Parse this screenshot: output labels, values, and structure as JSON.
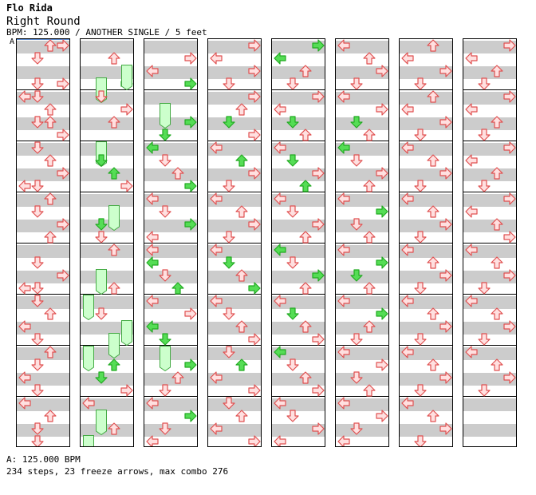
{
  "header": {
    "artist": "Flo Rida",
    "title": "Right Round",
    "info": "BPM: 125.000 / ANOTHER SINGLE / 5 feet",
    "bpm_marker": "A"
  },
  "footer": {
    "bpm_line": "A: 125.000 BPM",
    "stats_line": "234 steps, 23 freeze arrows, max combo 276"
  },
  "colors": {
    "stripe": "#cccccc",
    "arrow_red_fill": "#ffe0e0",
    "arrow_red_stroke": "#e05050",
    "arrow_green_fill": "#55dd55",
    "arrow_green_stroke": "#22aa22",
    "freeze_fill": "#ccffcc",
    "freeze_stroke": "#44aa44"
  },
  "chart": {
    "columns": 8,
    "measures_per_column": 8,
    "lanes": [
      "left",
      "down",
      "up",
      "right"
    ],
    "notes": [
      [
        [
          0,
          "up",
          1
        ],
        [
          1,
          "down",
          1
        ],
        [
          0,
          "right",
          1
        ],
        [
          3,
          "right",
          1
        ],
        [
          3,
          "down",
          1
        ],
        [
          4,
          "left",
          1
        ],
        [
          4,
          "down",
          1
        ],
        [
          5,
          "up",
          1
        ],
        [
          6,
          "down",
          1
        ],
        [
          6,
          "up",
          1
        ],
        [
          7,
          "right",
          1
        ],
        [
          8,
          "down",
          1
        ],
        [
          9,
          "up",
          1
        ],
        [
          10,
          "right",
          1
        ],
        [
          11,
          "left",
          1
        ],
        [
          11,
          "down",
          1
        ],
        [
          12,
          "up",
          1
        ],
        [
          13,
          "down",
          1
        ],
        [
          14,
          "right",
          1
        ],
        [
          15,
          "up",
          1
        ],
        [
          17,
          "down",
          1
        ],
        [
          18,
          "right",
          1
        ],
        [
          19,
          "left",
          1
        ],
        [
          19,
          "down",
          1
        ],
        [
          20,
          "down",
          1
        ],
        [
          21,
          "up",
          1
        ],
        [
          22,
          "left",
          1
        ],
        [
          23,
          "down",
          1
        ],
        [
          24,
          "up",
          1
        ],
        [
          25,
          "down",
          1
        ],
        [
          26,
          "left",
          1
        ],
        [
          27,
          "down",
          1
        ],
        [
          28,
          "left",
          1
        ],
        [
          29,
          "up",
          1
        ],
        [
          30,
          "down",
          1
        ],
        [
          31,
          "down",
          1
        ]
      ],
      [
        [
          3,
          "right",
          2
        ],
        [
          3,
          "down",
          0
        ],
        [
          6,
          "up",
          1
        ],
        [
          2,
          "right",
          0
        ],
        [
          1,
          "up",
          1
        ],
        [
          4,
          "down",
          1
        ],
        [
          5,
          "right",
          1
        ],
        [
          8,
          "down",
          0
        ],
        [
          9,
          "down",
          2
        ],
        [
          10,
          "up",
          2
        ],
        [
          11,
          "right",
          1
        ],
        [
          13,
          "up",
          0
        ],
        [
          14,
          "down",
          2
        ],
        [
          15,
          "down",
          1
        ],
        [
          16,
          "up",
          1
        ],
        [
          18,
          "down",
          0
        ],
        [
          19,
          "up",
          1
        ],
        [
          20,
          "left",
          0
        ],
        [
          21,
          "down",
          1
        ],
        [
          22,
          "right",
          0
        ],
        [
          23,
          "up",
          0
        ],
        [
          24,
          "left",
          0
        ],
        [
          25,
          "up",
          2
        ],
        [
          26,
          "down",
          2
        ],
        [
          27,
          "right",
          1
        ],
        [
          28,
          "left",
          1
        ],
        [
          29,
          "down",
          0
        ],
        [
          30,
          "up",
          1
        ],
        [
          31,
          "left",
          0
        ]
      ],
      [
        [
          1,
          "right",
          1
        ],
        [
          2,
          "left",
          1
        ],
        [
          3,
          "right",
          2
        ],
        [
          5,
          "down",
          0
        ],
        [
          6,
          "right",
          2
        ],
        [
          7,
          "down",
          2
        ],
        [
          8,
          "left",
          2
        ],
        [
          9,
          "down",
          1
        ],
        [
          10,
          "up",
          1
        ],
        [
          11,
          "right",
          2
        ],
        [
          12,
          "left",
          1
        ],
        [
          13,
          "down",
          1
        ],
        [
          14,
          "right",
          2
        ],
        [
          15,
          "left",
          1
        ],
        [
          16,
          "left",
          1
        ],
        [
          17,
          "left",
          2
        ],
        [
          18,
          "down",
          1
        ],
        [
          19,
          "up",
          2
        ],
        [
          20,
          "left",
          1
        ],
        [
          21,
          "right",
          1
        ],
        [
          22,
          "left",
          2
        ],
        [
          23,
          "down",
          2
        ],
        [
          24,
          "down",
          0
        ],
        [
          25,
          "right",
          2
        ],
        [
          26,
          "up",
          1
        ],
        [
          27,
          "down",
          1
        ],
        [
          28,
          "left",
          1
        ],
        [
          29,
          "right",
          2
        ],
        [
          30,
          "down",
          1
        ],
        [
          31,
          "left",
          1
        ]
      ],
      [
        [
          0,
          "right",
          1
        ],
        [
          1,
          "left",
          1
        ],
        [
          2,
          "right",
          1
        ],
        [
          3,
          "down",
          1
        ],
        [
          4,
          "right",
          1
        ],
        [
          5,
          "up",
          1
        ],
        [
          6,
          "down",
          2
        ],
        [
          7,
          "right",
          1
        ],
        [
          8,
          "left",
          1
        ],
        [
          9,
          "up",
          2
        ],
        [
          10,
          "right",
          1
        ],
        [
          11,
          "down",
          1
        ],
        [
          12,
          "left",
          1
        ],
        [
          13,
          "up",
          1
        ],
        [
          14,
          "right",
          1
        ],
        [
          15,
          "down",
          1
        ],
        [
          16,
          "left",
          1
        ],
        [
          17,
          "down",
          2
        ],
        [
          18,
          "up",
          1
        ],
        [
          19,
          "right",
          2
        ],
        [
          20,
          "left",
          1
        ],
        [
          21,
          "down",
          1
        ],
        [
          22,
          "up",
          1
        ],
        [
          23,
          "right",
          1
        ],
        [
          24,
          "down",
          1
        ],
        [
          25,
          "up",
          2
        ],
        [
          26,
          "left",
          1
        ],
        [
          27,
          "right",
          1
        ],
        [
          28,
          "down",
          1
        ],
        [
          29,
          "up",
          1
        ],
        [
          30,
          "left",
          1
        ],
        [
          31,
          "right",
          1
        ]
      ],
      [
        [
          0,
          "right",
          2
        ],
        [
          1,
          "left",
          2
        ],
        [
          2,
          "up",
          1
        ],
        [
          3,
          "down",
          1
        ],
        [
          4,
          "right",
          1
        ],
        [
          5,
          "left",
          1
        ],
        [
          6,
          "down",
          2
        ],
        [
          7,
          "up",
          1
        ],
        [
          8,
          "left",
          1
        ],
        [
          9,
          "down",
          2
        ],
        [
          10,
          "right",
          1
        ],
        [
          11,
          "up",
          2
        ],
        [
          12,
          "left",
          1
        ],
        [
          13,
          "down",
          1
        ],
        [
          14,
          "right",
          1
        ],
        [
          15,
          "up",
          1
        ],
        [
          16,
          "left",
          2
        ],
        [
          17,
          "down",
          1
        ],
        [
          18,
          "right",
          2
        ],
        [
          19,
          "up",
          1
        ],
        [
          20,
          "left",
          1
        ],
        [
          21,
          "down",
          2
        ],
        [
          22,
          "up",
          1
        ],
        [
          23,
          "right",
          1
        ],
        [
          24,
          "left",
          2
        ],
        [
          25,
          "down",
          1
        ],
        [
          26,
          "up",
          1
        ],
        [
          27,
          "right",
          1
        ],
        [
          28,
          "left",
          1
        ],
        [
          29,
          "down",
          1
        ],
        [
          30,
          "right",
          1
        ],
        [
          31,
          "left",
          1
        ]
      ],
      [
        [
          0,
          "left",
          1
        ],
        [
          1,
          "up",
          1
        ],
        [
          2,
          "right",
          1
        ],
        [
          3,
          "down",
          1
        ],
        [
          4,
          "left",
          1
        ],
        [
          5,
          "right",
          1
        ],
        [
          6,
          "down",
          2
        ],
        [
          7,
          "up",
          1
        ],
        [
          8,
          "left",
          2
        ],
        [
          9,
          "down",
          1
        ],
        [
          10,
          "right",
          1
        ],
        [
          11,
          "up",
          1
        ],
        [
          12,
          "left",
          1
        ],
        [
          13,
          "right",
          2
        ],
        [
          14,
          "down",
          1
        ],
        [
          15,
          "up",
          1
        ],
        [
          16,
          "left",
          1
        ],
        [
          17,
          "right",
          2
        ],
        [
          18,
          "down",
          2
        ],
        [
          19,
          "up",
          1
        ],
        [
          20,
          "left",
          1
        ],
        [
          21,
          "right",
          2
        ],
        [
          22,
          "up",
          1
        ],
        [
          23,
          "down",
          1
        ],
        [
          24,
          "left",
          1
        ],
        [
          25,
          "right",
          1
        ],
        [
          26,
          "down",
          1
        ],
        [
          27,
          "up",
          1
        ],
        [
          28,
          "left",
          1
        ],
        [
          29,
          "right",
          1
        ],
        [
          30,
          "down",
          1
        ],
        [
          31,
          "left",
          1
        ]
      ],
      [
        [
          0,
          "up",
          1
        ],
        [
          1,
          "left",
          1
        ],
        [
          2,
          "right",
          1
        ],
        [
          3,
          "down",
          1
        ],
        [
          4,
          "up",
          1
        ],
        [
          5,
          "left",
          1
        ],
        [
          6,
          "right",
          1
        ],
        [
          7,
          "down",
          1
        ],
        [
          8,
          "left",
          1
        ],
        [
          9,
          "up",
          1
        ],
        [
          10,
          "right",
          1
        ],
        [
          11,
          "down",
          1
        ],
        [
          12,
          "left",
          1
        ],
        [
          13,
          "up",
          1
        ],
        [
          14,
          "right",
          1
        ],
        [
          15,
          "down",
          1
        ],
        [
          16,
          "left",
          1
        ],
        [
          17,
          "up",
          1
        ],
        [
          18,
          "right",
          1
        ],
        [
          19,
          "down",
          1
        ],
        [
          20,
          "left",
          1
        ],
        [
          21,
          "up",
          1
        ],
        [
          22,
          "right",
          1
        ],
        [
          23,
          "down",
          1
        ],
        [
          24,
          "left",
          1
        ],
        [
          25,
          "up",
          1
        ],
        [
          26,
          "right",
          1
        ],
        [
          27,
          "down",
          1
        ],
        [
          28,
          "left",
          1
        ],
        [
          29,
          "up",
          1
        ],
        [
          30,
          "right",
          1
        ],
        [
          31,
          "down",
          1
        ]
      ],
      [
        [
          0,
          "right",
          1
        ],
        [
          1,
          "left",
          1
        ],
        [
          2,
          "up",
          1
        ],
        [
          3,
          "down",
          1
        ],
        [
          4,
          "right",
          1
        ],
        [
          5,
          "left",
          1
        ],
        [
          6,
          "up",
          1
        ],
        [
          7,
          "down",
          1
        ],
        [
          8,
          "right",
          1
        ],
        [
          9,
          "left",
          1
        ],
        [
          10,
          "up",
          1
        ],
        [
          11,
          "down",
          1
        ],
        [
          12,
          "right",
          1
        ],
        [
          13,
          "left",
          1
        ],
        [
          14,
          "up",
          1
        ],
        [
          15,
          "right",
          1
        ],
        [
          16,
          "left",
          1
        ],
        [
          17,
          "up",
          1
        ],
        [
          18,
          "right",
          1
        ],
        [
          19,
          "down",
          1
        ],
        [
          20,
          "left",
          1
        ],
        [
          21,
          "up",
          1
        ],
        [
          22,
          "right",
          1
        ],
        [
          23,
          "down",
          1
        ],
        [
          24,
          "left",
          1
        ],
        [
          25,
          "up",
          1
        ],
        [
          26,
          "right",
          1
        ],
        [
          27,
          "down",
          1
        ]
      ]
    ]
  }
}
